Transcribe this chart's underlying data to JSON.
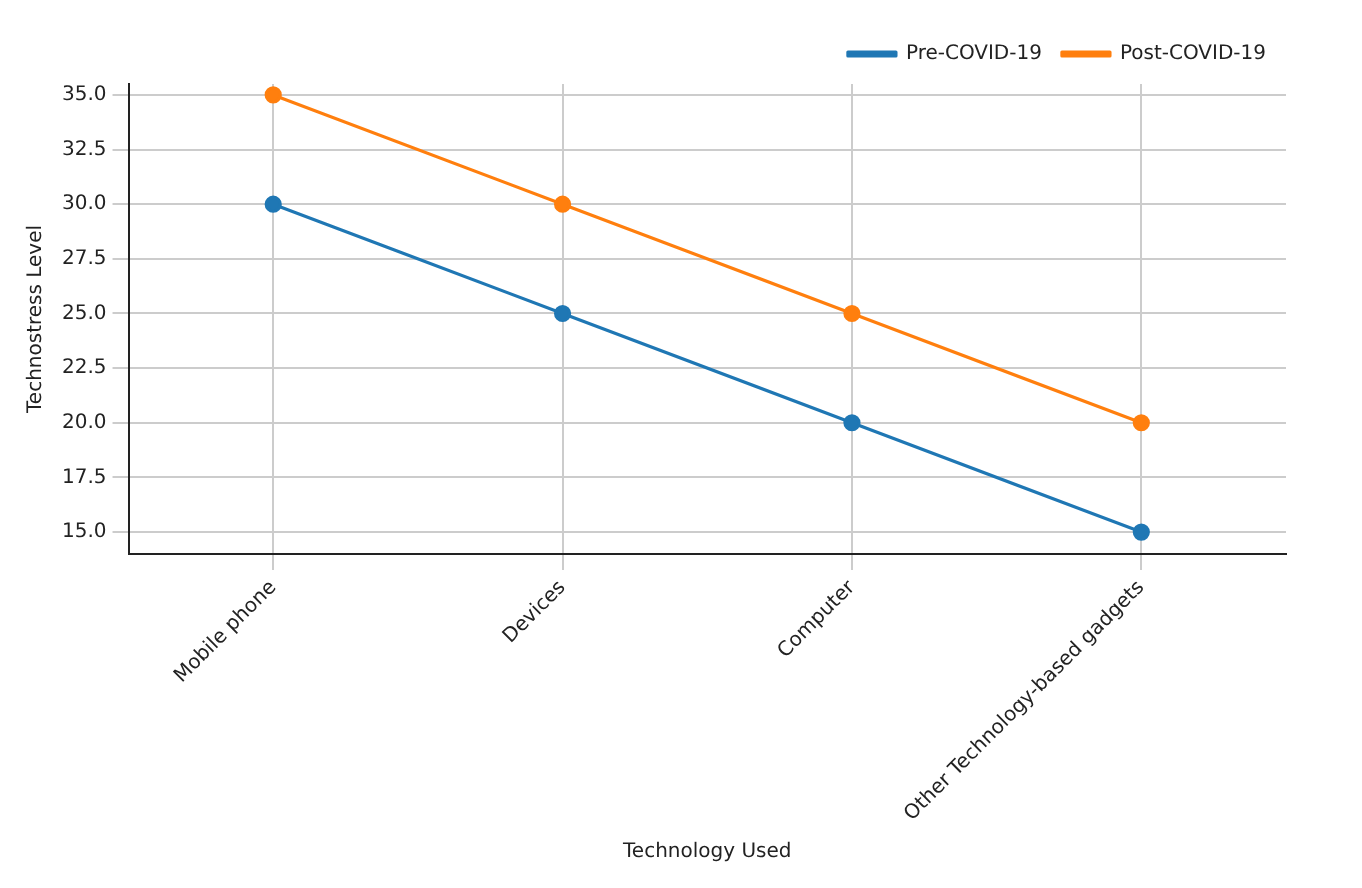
{
  "chart_data": {
    "type": "line",
    "xlabel": "Technology Used",
    "ylabel": "Technostress Level",
    "categories": [
      "Mobile phone",
      "Devices",
      "Computer",
      "Other Technology-based gadgets"
    ],
    "series": [
      {
        "name": "Pre-COVID-19",
        "color": "#1f77b4",
        "values": [
          30,
          25,
          20,
          15
        ]
      },
      {
        "name": "Post-COVID-19",
        "color": "#ff7f0e",
        "values": [
          35,
          30,
          25,
          20
        ]
      }
    ],
    "ylim": [
      14,
      35.5
    ],
    "yticks": [
      {
        "value": 15,
        "label": "15.0"
      },
      {
        "value": 17.5,
        "label": "17.5"
      },
      {
        "value": 20,
        "label": "20.0"
      },
      {
        "value": 22.5,
        "label": "22.5"
      },
      {
        "value": 25,
        "label": "25.0"
      },
      {
        "value": 27.5,
        "label": "27.5"
      },
      {
        "value": 30,
        "label": "30.0"
      },
      {
        "value": 32.5,
        "label": "32.5"
      },
      {
        "value": 35,
        "label": "35.0"
      }
    ],
    "grid": true,
    "legend": "top right",
    "marker": "circle",
    "line_style": "solid"
  }
}
